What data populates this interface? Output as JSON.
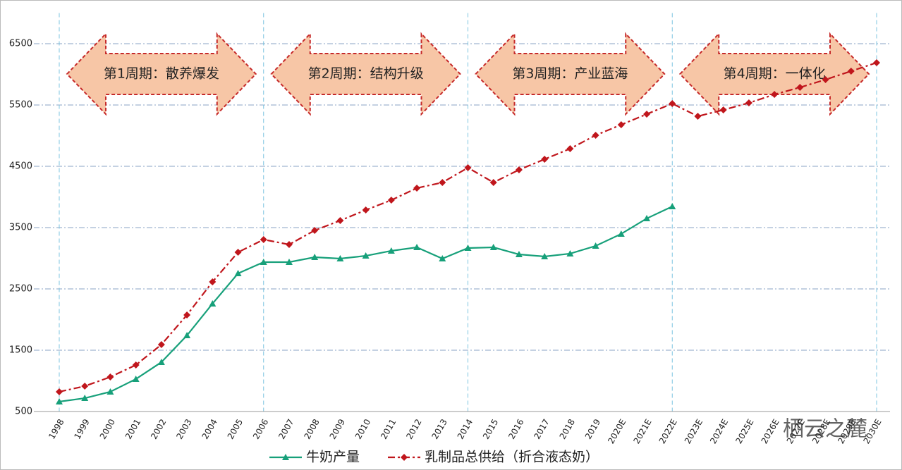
{
  "chart_data": {
    "type": "line",
    "categories": [
      "1998",
      "1999",
      "2000",
      "2001",
      "2002",
      "2003",
      "2004",
      "2005",
      "2006",
      "2007",
      "2008",
      "2009",
      "2010",
      "2011",
      "2012",
      "2013",
      "2014",
      "2015",
      "2016",
      "2017",
      "2018",
      "2019",
      "2020E",
      "2021E",
      "2022E",
      "2023E",
      "2024E",
      "2025E",
      "2026E",
      "2027E",
      "2028E",
      "2029E",
      "2030E"
    ],
    "series": [
      {
        "name": "牛奶产量",
        "color": "#17a07a",
        "marker": "triangle",
        "dash": "solid",
        "values": [
          661,
          718,
          822,
          1029,
          1305,
          1741,
          2259,
          2753,
          2937,
          2937,
          3017,
          2994,
          3040,
          3121,
          3178,
          2994,
          3167,
          3178,
          3063,
          3029,
          3075,
          3201,
          3397,
          3649,
          3845,
          null,
          null,
          null,
          null,
          null,
          null,
          null,
          null
        ]
      },
      {
        "name": "乳制品总供给（折合液态奶）",
        "color": "#c0161c",
        "marker": "diamond",
        "dash": "dashdot",
        "values": [
          822,
          914,
          1063,
          1259,
          1592,
          2075,
          2615,
          3098,
          3305,
          3224,
          3454,
          3615,
          3787,
          3948,
          4144,
          4236,
          4477,
          4236,
          4443,
          4615,
          4787,
          5006,
          5178,
          5351,
          5523,
          5316,
          5420,
          5534,
          5672,
          5787,
          5914,
          6052,
          6190
        ]
      }
    ],
    "ylim": [
      500,
      7000
    ],
    "yticks": [
      500,
      1500,
      2500,
      3500,
      4500,
      5500,
      6500
    ],
    "grid": true,
    "periods": [
      "第1周期：散养爆发",
      "第2周期：结构升级",
      "第3周期：产业蓝海",
      "第4周期：一体化"
    ],
    "watermark": "栖云之麓"
  }
}
